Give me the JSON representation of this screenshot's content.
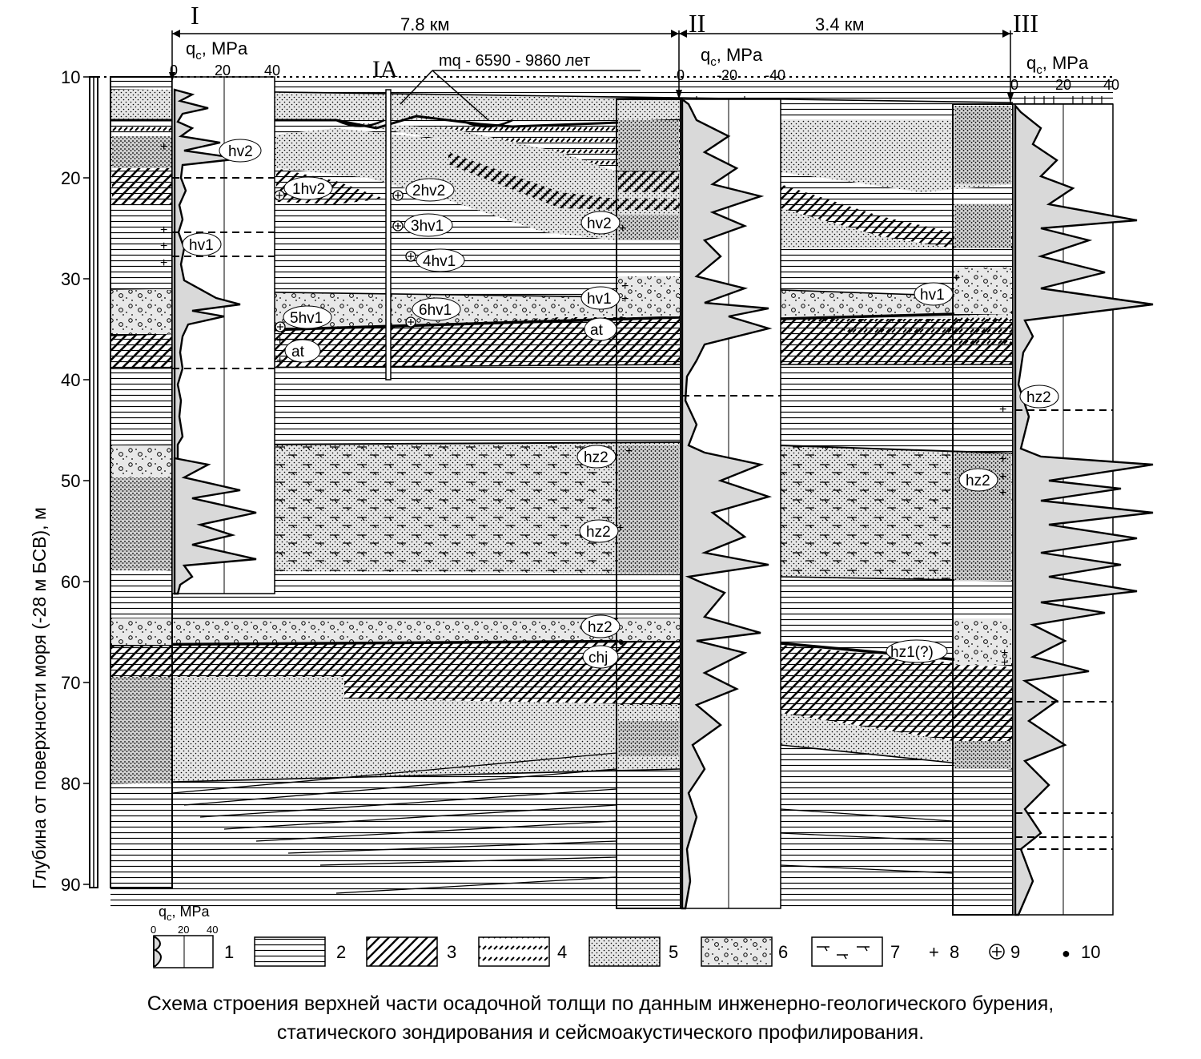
{
  "boreholes": {
    "I": "I",
    "IA": "IA",
    "II": "II",
    "III": "III"
  },
  "distances": {
    "d1": "7.8 км",
    "d2": "3.4 км"
  },
  "date_label": "mq - 6590 - 9860 лет",
  "qc_header": {
    "q": "q",
    "sub": "c",
    "unit": ", MPa"
  },
  "qc_ticks": {
    "i": [
      "0",
      "20",
      "40"
    ],
    "ii": [
      "0",
      "-20",
      "-40"
    ],
    "iii": [
      "0",
      "20",
      "40"
    ],
    "legend": [
      "0",
      "20",
      "40"
    ]
  },
  "y_axis": {
    "label": "Глубина от поверхности моря (-28 м БСВ), м",
    "ticks": [
      "10",
      "20",
      "30",
      "40",
      "50",
      "60",
      "70",
      "80",
      "90"
    ]
  },
  "strata_labels": [
    "hv2",
    "1hv2",
    "2hv2",
    "hv1",
    "3hv1",
    "4hv1",
    "hv2",
    "hv1",
    "5hv1",
    "6hv1",
    "hv1",
    "at",
    "at",
    "hz2",
    "hz2",
    "hz2",
    "hz2",
    "hz2",
    "chj",
    "hz1(?)"
  ],
  "legend": [
    "1",
    "2",
    "3",
    "4",
    "5",
    "6",
    "7",
    "8",
    "9",
    "10"
  ],
  "legend_symbols": {
    "plus": "+",
    "dot": "●"
  },
  "caption": {
    "line1": "Схема строения верхней части осадочной толщи по данным инженерно-геологического бурения,",
    "line2": "статического зондирования и сейсмоакустического профилирования."
  },
  "colors": {
    "ink": "#000000",
    "fill_gray": "#d9d9d9"
  }
}
